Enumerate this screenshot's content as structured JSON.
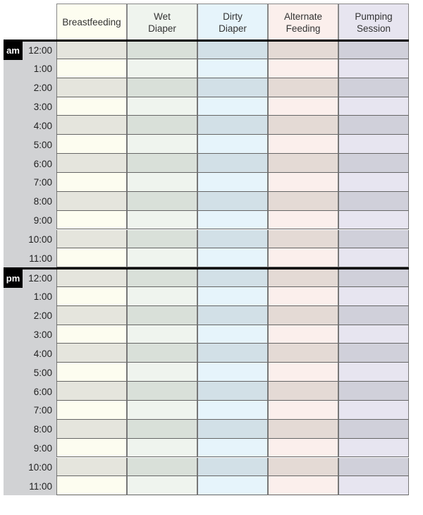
{
  "columns": [
    {
      "label": "Breastfeeding",
      "light": "#fdfdf0",
      "dark": "#e5e5dd"
    },
    {
      "label": "Wet\nDiaper",
      "light": "#eff4ee",
      "dark": "#d9e0d9"
    },
    {
      "label": "Dirty\nDiaper",
      "light": "#e6f4fb",
      "dark": "#d2e0e7"
    },
    {
      "label": "Alternate\nFeeding",
      "light": "#fbefec",
      "dark": "#e4dad5"
    },
    {
      "label": "Pumping\nSession",
      "light": "#e7e5f0",
      "dark": "#d0d0da"
    }
  ],
  "sections": [
    {
      "period": "am",
      "times": [
        "12:00",
        "1:00",
        "2:00",
        "3:00",
        "4:00",
        "5:00",
        "6:00",
        "7:00",
        "8:00",
        "9:00",
        "10:00",
        "11:00"
      ]
    },
    {
      "period": "pm",
      "times": [
        "12:00",
        "1:00",
        "2:00",
        "3:00",
        "4:00",
        "5:00",
        "6:00",
        "7:00",
        "8:00",
        "9:00",
        "10:00",
        "11:00"
      ]
    }
  ]
}
